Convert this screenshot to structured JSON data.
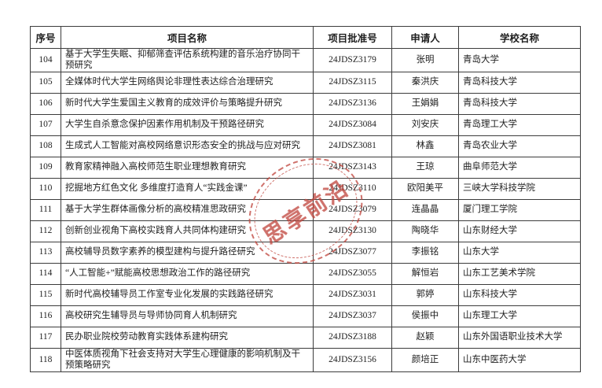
{
  "watermark": {
    "text": "思享前沿",
    "color": "#c0443b"
  },
  "table": {
    "headers": {
      "no": "序号",
      "project": "项目名称",
      "grant_no": "项目批准号",
      "applicant": "申请人",
      "school": "学校名称"
    },
    "rows": [
      {
        "no": "104",
        "project": "基于大学生失眠、抑郁筛查评估系统构建的音乐治疗协同干预研究",
        "grant_no": "24JDSZ3179",
        "applicant": "张明",
        "school": "青岛大学"
      },
      {
        "no": "105",
        "project": "全媒体时代大学生网络舆论非理性表达综合治理研究",
        "grant_no": "24JDSZ3115",
        "applicant": "秦洪庆",
        "school": "青岛科技大学"
      },
      {
        "no": "106",
        "project": "新时代大学生爱国主义教育的成效评价与策略提升研究",
        "grant_no": "24JDSZ3136",
        "applicant": "王娟娟",
        "school": "青岛科技大学"
      },
      {
        "no": "107",
        "project": "大学生自杀意念保护因素作用机制及干预路径研究",
        "grant_no": "24JDSZ3084",
        "applicant": "刘安庆",
        "school": "青岛理工大学"
      },
      {
        "no": "108",
        "project": "生成式人工智能对高校网络意识形态安全的挑战与应对研究",
        "grant_no": "24JDSZ3081",
        "applicant": "林鑫",
        "school": "青岛农业大学"
      },
      {
        "no": "109",
        "project": "教育家精神融入高校师范生职业理想教育研究",
        "grant_no": "24JDSZ3143",
        "applicant": "王琼",
        "school": "曲阜师范大学"
      },
      {
        "no": "110",
        "project": "挖掘地方红色文化 多维度打造育人“实践金课”",
        "grant_no": "24JDSZ3110",
        "applicant": "欧阳美平",
        "school": "三峡大学科技学院"
      },
      {
        "no": "111",
        "project": "基于大学生群体画像分析的高校精准思政研究",
        "grant_no": "24JDSZ3079",
        "applicant": "连晶晶",
        "school": "厦门理工学院"
      },
      {
        "no": "112",
        "project": "创新创业视角下高校实践育人共同体构建研究",
        "grant_no": "24JDSZ3130",
        "applicant": "陶晓华",
        "school": "山东财经大学"
      },
      {
        "no": "113",
        "project": "高校辅导员数字素养的模型建构与提升路径研究",
        "grant_no": "24JDSZ3077",
        "applicant": "李振铭",
        "school": "山东大学"
      },
      {
        "no": "114",
        "project": "“人工智能+”赋能高校思想政治工作的路径研究",
        "grant_no": "24JDSZ3055",
        "applicant": "解恒岩",
        "school": "山东工艺美术学院"
      },
      {
        "no": "115",
        "project": "新时代高校辅导员工作室专业化发展的实践路径研究",
        "grant_no": "24JDSZ3031",
        "applicant": "郭婷",
        "school": "山东科技大学"
      },
      {
        "no": "116",
        "project": "高校研究生辅导员与导师协同育人机制研究",
        "grant_no": "24JDSZ3037",
        "applicant": "侯振中",
        "school": "山东理工大学"
      },
      {
        "no": "117",
        "project": "民办职业院校劳动教育实践体系建构研究",
        "grant_no": "24JDSZ3188",
        "applicant": "赵颖",
        "school": "山东外国语职业技术大学"
      },
      {
        "no": "118",
        "project": "中医体质视角下社会支持对大学生心理健康的影响机制及干预策略研究",
        "grant_no": "24JDSZ3156",
        "applicant": "颜培正",
        "school": "山东中医药大学"
      }
    ]
  }
}
